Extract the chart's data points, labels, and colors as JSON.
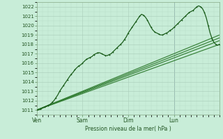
{
  "title": "",
  "xlabel": "Pression niveau de la mer( hPa )",
  "ylabel": "",
  "bg_color": "#c8edd8",
  "grid_color_major": "#a8ccb8",
  "grid_color_minor": "#b8ddc8",
  "line_color_dark": "#1a5c1a",
  "line_color_mid": "#2d7a2d",
  "ylim": [
    1010.5,
    1022.5
  ],
  "yticks": [
    1011,
    1012,
    1013,
    1014,
    1015,
    1016,
    1017,
    1018,
    1019,
    1020,
    1021,
    1022
  ],
  "days": [
    "Ven",
    "Sam",
    "Dim",
    "Lun"
  ],
  "day_positions": [
    0,
    24,
    48,
    72
  ],
  "lun_line_x": 72,
  "xlim": [
    0,
    96
  ],
  "series": {
    "observed": {
      "x": [
        0,
        1,
        2,
        3,
        4,
        5,
        6,
        7,
        8,
        9,
        10,
        11,
        12,
        13,
        14,
        15,
        16,
        17,
        18,
        19,
        20,
        21,
        22,
        23,
        24,
        25,
        26,
        27,
        28,
        29,
        30,
        31,
        32,
        33,
        34,
        35,
        36,
        37,
        38,
        39,
        40,
        41,
        42,
        43,
        44,
        45,
        46,
        47,
        48,
        49,
        50,
        51,
        52,
        53,
        54,
        55,
        56,
        57,
        58,
        59,
        60,
        61,
        62,
        63,
        64,
        65,
        66,
        67,
        68,
        69,
        70,
        71,
        72,
        73,
        74,
        75,
        76,
        77,
        78,
        79,
        80,
        81,
        82,
        83,
        84,
        85,
        86,
        87,
        88,
        89,
        90,
        91,
        92,
        93,
        94,
        95,
        96
      ],
      "y": [
        1011.0,
        1011.0,
        1011.1,
        1011.2,
        1011.3,
        1011.4,
        1011.5,
        1011.6,
        1011.8,
        1012.0,
        1012.3,
        1012.6,
        1013.0,
        1013.3,
        1013.6,
        1013.9,
        1014.2,
        1014.5,
        1014.8,
        1015.0,
        1015.3,
        1015.5,
        1015.7,
        1015.8,
        1016.0,
        1016.2,
        1016.4,
        1016.5,
        1016.6,
        1016.7,
        1016.9,
        1017.0,
        1017.1,
        1017.1,
        1017.0,
        1016.9,
        1016.8,
        1016.8,
        1016.9,
        1017.0,
        1017.2,
        1017.4,
        1017.6,
        1017.8,
        1018.0,
        1018.2,
        1018.5,
        1018.8,
        1019.2,
        1019.5,
        1019.8,
        1020.1,
        1020.4,
        1020.7,
        1021.0,
        1021.2,
        1021.1,
        1020.9,
        1020.6,
        1020.2,
        1019.8,
        1019.5,
        1019.3,
        1019.2,
        1019.1,
        1019.0,
        1019.0,
        1019.1,
        1019.2,
        1019.3,
        1019.5,
        1019.6,
        1019.8,
        1020.0,
        1020.2,
        1020.4,
        1020.6,
        1020.8,
        1021.0,
        1021.2,
        1021.4,
        1021.5,
        1021.6,
        1021.8,
        1022.0,
        1022.1,
        1022.0,
        1021.8,
        1021.4,
        1020.8,
        1020.0,
        1019.2,
        1018.6,
        1018.2,
        1018.0,
        1017.9,
        1018.0
      ]
    },
    "linear1": {
      "x": [
        0,
        96
      ],
      "y": [
        1011.0,
        1018.0
      ]
    },
    "linear2": {
      "x": [
        0,
        96
      ],
      "y": [
        1011.0,
        1018.4
      ]
    },
    "linear3": {
      "x": [
        0,
        96
      ],
      "y": [
        1011.0,
        1018.7
      ]
    },
    "linear4": {
      "x": [
        0,
        96
      ],
      "y": [
        1011.0,
        1019.0
      ]
    }
  }
}
